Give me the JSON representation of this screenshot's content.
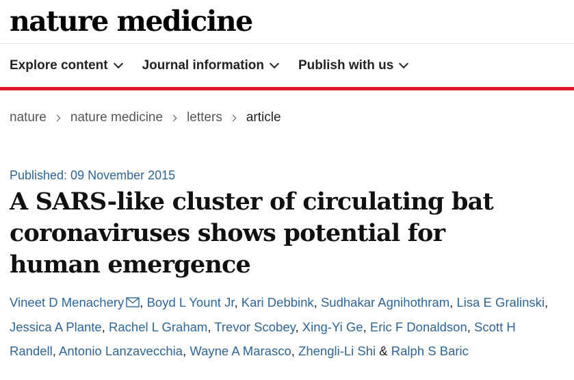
{
  "site": {
    "logo_text": "nature medicine"
  },
  "nav": {
    "items": [
      {
        "label": "Explore content"
      },
      {
        "label": "Journal information"
      },
      {
        "label": "Publish with us"
      }
    ]
  },
  "breadcrumb": {
    "items": [
      {
        "label": "nature"
      },
      {
        "label": "nature medicine"
      },
      {
        "label": "letters"
      }
    ],
    "current": "article"
  },
  "article": {
    "published": "Published: 09 November 2015",
    "title": "A SARS-like cluster of circulating bat coronaviruses shows potential for human emergence",
    "authors": [
      "Vineet D Menachery",
      "Boyd L Yount Jr",
      "Kari Debbink",
      "Sudhakar Agnihothram",
      "Lisa E Gralinski",
      "Jessica A Plante",
      "Rachel L Graham",
      "Trevor Scobey",
      "Xing-Yi Ge",
      "Eric F Donaldson",
      "Scott H Randell",
      "Antonio Lanzavecchia",
      "Wayne A Marasco",
      "Zhengli-Li Shi",
      "Ralph S Baric"
    ],
    "author_separator": ", ",
    "last_separator": " & "
  },
  "colors": {
    "accent_red": "#e0162b",
    "link_blue": "#2e6597"
  },
  "icons": {
    "corresponding_author": "envelope-icon"
  }
}
